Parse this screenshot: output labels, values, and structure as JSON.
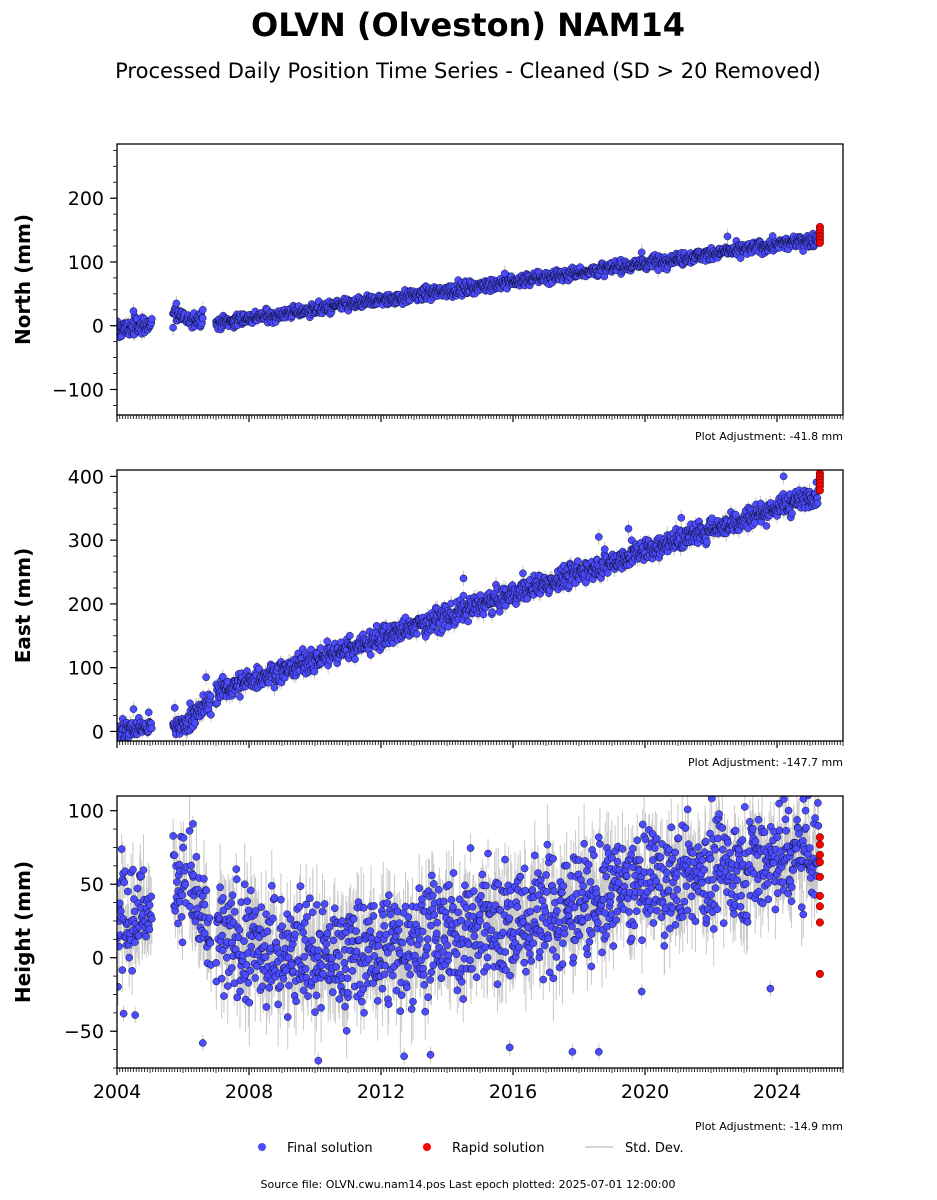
{
  "title": "OLVN (Olveston) NAM14",
  "subtitle": "Processed Daily Position Time Series - Cleaned (SD > 20 Removed)",
  "footer": "Source file: OLVN.cwu.nam14.pos  Last epoch plotted: 2025-07-01 12:00:00",
  "legend": {
    "final": "Final solution",
    "rapid": "Rapid solution",
    "std": "Std. Dev."
  },
  "colors": {
    "final": "#4b4bff",
    "rapid": "#ff0000",
    "std": "#c8c8c8",
    "marker_edge": "#000000"
  },
  "chart_data": [
    {
      "type": "scatter",
      "ylabel": "North (mm)",
      "adjustment": "Plot Adjustment: -41.8 mm",
      "ylim": [
        -140,
        285
      ],
      "yticks": [
        -100,
        0,
        100,
        200
      ],
      "xlim": [
        2004.0,
        2026.0
      ],
      "xticks": [
        2004,
        2008,
        2012,
        2016,
        2020,
        2024
      ],
      "show_xticklabels": false,
      "series": [
        {
          "kind": "final",
          "segments": [
            {
              "x": [
                2004.0,
                2005.05
              ],
              "y": [
                -7,
                3
              ],
              "sd": 7
            },
            {
              "x": [
                2005.7,
                2006.05
              ],
              "y": [
                22,
                12
              ],
              "sd": 6
            },
            {
              "x": [
                2006.1,
                2006.6
              ],
              "y": [
                8,
                12
              ],
              "sd": 6
            },
            {
              "x": [
                2007.0,
                2025.25
              ],
              "y": [
                4,
                136
              ],
              "sd": 5
            }
          ],
          "outliers": [
            {
              "x": 2004.5,
              "y": 23
            },
            {
              "x": 2005.8,
              "y": 35
            },
            {
              "x": 2005.7,
              "y": -3
            },
            {
              "x": 2006.6,
              "y": 25
            },
            {
              "x": 2015.75,
              "y": 82
            },
            {
              "x": 2019.9,
              "y": 115
            },
            {
              "x": 2022.5,
              "y": 140
            },
            {
              "x": 2020.4,
              "y": 87
            }
          ]
        },
        {
          "kind": "rapid",
          "points": [
            {
              "x": 2025.3,
              "y": 155
            },
            {
              "x": 2025.3,
              "y": 150
            },
            {
              "x": 2025.3,
              "y": 145
            },
            {
              "x": 2025.3,
              "y": 140
            },
            {
              "x": 2025.3,
              "y": 135
            },
            {
              "x": 2025.3,
              "y": 130
            }
          ]
        }
      ]
    },
    {
      "type": "scatter",
      "ylabel": "East (mm)",
      "adjustment": "Plot Adjustment: -147.7 mm",
      "ylim": [
        -15,
        410
      ],
      "yticks": [
        0,
        100,
        200,
        300,
        400
      ],
      "xlim": [
        2004.0,
        2026.0
      ],
      "xticks": [
        2004,
        2008,
        2012,
        2016,
        2020,
        2024
      ],
      "show_xticklabels": false,
      "series": [
        {
          "kind": "final",
          "segments": [
            {
              "x": [
                2004.0,
                2005.05
              ],
              "y": [
                2,
                8
              ],
              "sd": 8
            },
            {
              "x": [
                2005.7,
                2006.1
              ],
              "y": [
                3,
                15
              ],
              "sd": 8
            },
            {
              "x": [
                2006.1,
                2006.85
              ],
              "y": [
                18,
                45
              ],
              "sd": 10
            },
            {
              "x": [
                2007.0,
                2025.25
              ],
              "y": [
                62,
                372
              ],
              "sd": 9
            }
          ],
          "outliers": [
            {
              "x": 2004.5,
              "y": 35
            },
            {
              "x": 2005.75,
              "y": 37
            },
            {
              "x": 2006.7,
              "y": 85
            },
            {
              "x": 2014.5,
              "y": 240
            },
            {
              "x": 2018.6,
              "y": 305
            },
            {
              "x": 2019.5,
              "y": 318
            },
            {
              "x": 2021.1,
              "y": 335
            },
            {
              "x": 2024.2,
              "y": 400
            },
            {
              "x": 2016.3,
              "y": 248
            }
          ]
        },
        {
          "kind": "rapid",
          "points": [
            {
              "x": 2025.3,
              "y": 405
            },
            {
              "x": 2025.3,
              "y": 400
            },
            {
              "x": 2025.3,
              "y": 395
            },
            {
              "x": 2025.3,
              "y": 390
            },
            {
              "x": 2025.3,
              "y": 385
            },
            {
              "x": 2025.3,
              "y": 378
            }
          ]
        }
      ]
    },
    {
      "type": "scatter",
      "ylabel": "Height (mm)",
      "adjustment": "Plot Adjustment: -14.9 mm",
      "ylim": [
        -75,
        110
      ],
      "yticks": [
        -50,
        0,
        50,
        100
      ],
      "xlim": [
        2004.0,
        2026.0
      ],
      "xticks": [
        2004,
        2008,
        2012,
        2016,
        2020,
        2024
      ],
      "show_xticklabels": true,
      "series": [
        {
          "kind": "final",
          "segments": [
            {
              "x": [
                2004.0,
                2005.05
              ],
              "y": [
                20,
                35
              ],
              "sd": 18
            },
            {
              "x": [
                2005.7,
                2006.1
              ],
              "y": [
                60,
                50
              ],
              "sd": 15
            },
            {
              "x": [
                2006.2,
                2006.85
              ],
              "y": [
                55,
                5
              ],
              "sd": 18
            },
            {
              "x": [
                2007.0,
                2011.0
              ],
              "y": [
                10,
                0
              ],
              "sd": 20
            },
            {
              "x": [
                2011.0,
                2019.0
              ],
              "y": [
                0,
                40
              ],
              "sd": 20
            },
            {
              "x": [
                2019.0,
                2025.25
              ],
              "y": [
                45,
                75
              ],
              "sd": 18
            }
          ],
          "outliers": [
            {
              "x": 2004.2,
              "y": -38
            },
            {
              "x": 2004.55,
              "y": -39
            },
            {
              "x": 2006.3,
              "y": 91
            },
            {
              "x": 2006.6,
              "y": -58
            },
            {
              "x": 2010.1,
              "y": -70
            },
            {
              "x": 2012.7,
              "y": -67
            },
            {
              "x": 2013.5,
              "y": -66
            },
            {
              "x": 2015.9,
              "y": -61
            },
            {
              "x": 2017.8,
              "y": -64
            },
            {
              "x": 2018.6,
              "y": -64
            },
            {
              "x": 2018.6,
              "y": 82
            },
            {
              "x": 2023.8,
              "y": -21
            },
            {
              "x": 2024.8,
              "y": 108
            },
            {
              "x": 2019.9,
              "y": -23
            }
          ]
        },
        {
          "kind": "rapid",
          "points": [
            {
              "x": 2025.3,
              "y": 82
            },
            {
              "x": 2025.3,
              "y": 77
            },
            {
              "x": 2025.3,
              "y": 70
            },
            {
              "x": 2025.3,
              "y": 65
            },
            {
              "x": 2025.3,
              "y": 55
            },
            {
              "x": 2025.3,
              "y": 42
            },
            {
              "x": 2025.3,
              "y": 35
            },
            {
              "x": 2025.3,
              "y": 24
            },
            {
              "x": 2025.3,
              "y": -11
            }
          ]
        }
      ]
    }
  ]
}
